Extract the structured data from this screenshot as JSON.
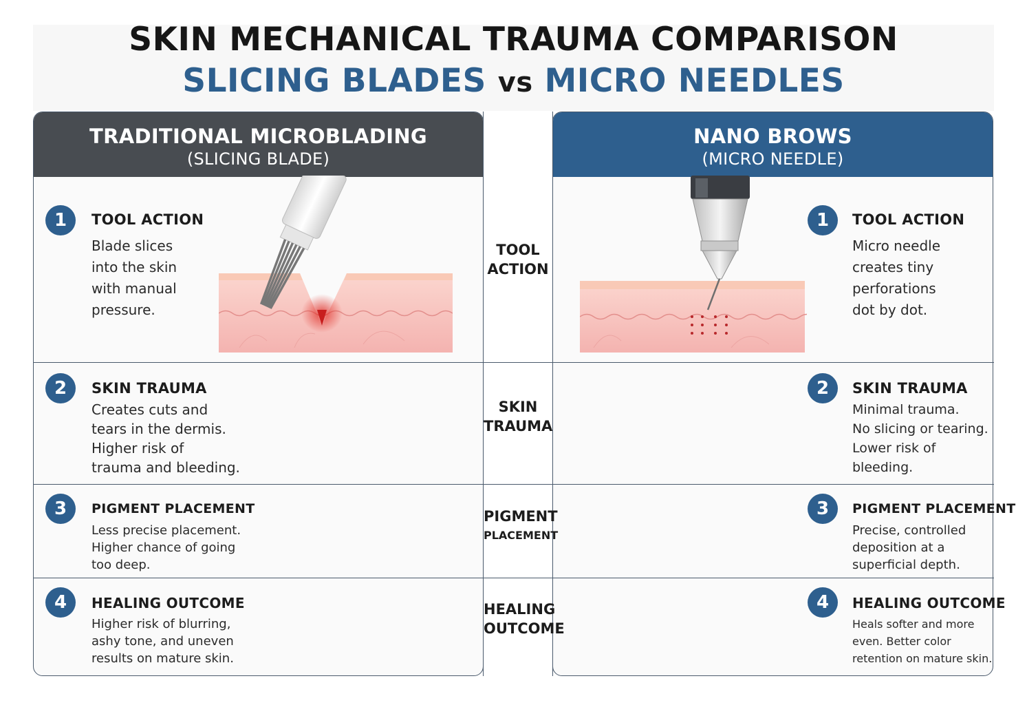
{
  "title": {
    "line1": "SKIN MECHANICAL TRAUMA COMPARISON",
    "left_term": "SLICING BLADES",
    "vs": "vs",
    "right_term": "MICRO NEEDLES"
  },
  "colors": {
    "accent_blue": "#2e5f8e",
    "dark_header": "#484c51",
    "skin": "#f6c9c4",
    "wound": "#e23b30"
  },
  "left_panel": {
    "heading": "TRADITIONAL MICROBLADING",
    "subheading": "(SLICING BLADE)",
    "illustration": "microblade-slicing-skin",
    "steps": [
      {
        "number": "1",
        "title": "TOOL ACTION",
        "description": "Blade slices\ninto the skin\nwith manual\npressure."
      },
      {
        "number": "2",
        "title": "SKIN TRAUMA",
        "description": "Creates cuts and\ntears in the dermis.\nHigher risk of\ntrauma and bleeding."
      },
      {
        "number": "3",
        "title": "PIGMENT PLACEMENT",
        "description": "Less precise placement.\nHigher chance of going\ntoo deep."
      },
      {
        "number": "4",
        "title": "HEALING OUTCOME",
        "description": "Higher risk of blurring,\nashy tone, and uneven\nresults on mature skin."
      }
    ]
  },
  "right_panel": {
    "heading": "NANO BROWS",
    "subheading": "(MICRO NEEDLE)",
    "illustration": "micro-needle-perforating-skin",
    "steps": [
      {
        "number": "1",
        "title": "TOOL ACTION",
        "description": "Micro needle\ncreates tiny\nperforations\ndot by dot."
      },
      {
        "number": "2",
        "title": "SKIN TRAUMA",
        "description": "Minimal trauma.\nNo slicing or tearing.\nLower risk of\nbleeding."
      },
      {
        "number": "3",
        "title": "PIGMENT PLACEMENT",
        "description": "Precise, controlled\ndeposition at a\nsuperficial depth."
      },
      {
        "number": "4",
        "title": "HEALING OUTCOME",
        "description": "Heals softer and more\neven. Better color\nretention on mature skin."
      }
    ]
  },
  "center_labels": [
    {
      "line1": "TOOL",
      "line2": "ACTION"
    },
    {
      "line1": "SKIN",
      "line2": "TRAUMA"
    },
    {
      "line1": "PIGMENT",
      "line2": "PLACEMENT"
    },
    {
      "line1": "HEALING",
      "line2": "OUTCOME"
    }
  ]
}
